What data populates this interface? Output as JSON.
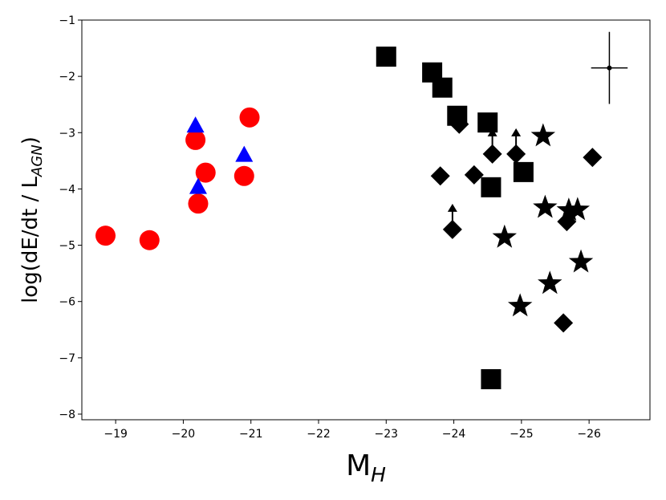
{
  "chart_data": {
    "type": "scatter",
    "title": "",
    "xlabel": {
      "main": "M",
      "sub": "H"
    },
    "ylabel": {
      "main": "log(dE/dt / L",
      "sub": "AGN",
      "tail": ")"
    },
    "xlim": [
      -18.5,
      -26.9
    ],
    "ylim": [
      -8.1,
      -1.0
    ],
    "x_inverted": true,
    "grid": false,
    "legend": "none",
    "xticks": [
      -19,
      -20,
      -21,
      -22,
      -23,
      -24,
      -25,
      -26
    ],
    "xtick_labels": [
      "−19",
      "−20",
      "−21",
      "−22",
      "−23",
      "−24",
      "−25",
      "−26"
    ],
    "yticks": [
      -1,
      -2,
      -3,
      -4,
      -5,
      -6,
      -7,
      -8
    ],
    "ytick_labels": [
      "−1",
      "−2",
      "−3",
      "−4",
      "−5",
      "−6",
      "−7",
      "−8"
    ],
    "series": [
      {
        "marker": "circle",
        "color": "#ff0000",
        "points": [
          [
            -18.85,
            -4.83
          ],
          [
            -19.5,
            -4.91
          ],
          [
            -20.18,
            -3.13
          ],
          [
            -20.22,
            -4.26
          ],
          [
            -20.33,
            -3.71
          ],
          [
            -20.9,
            -3.77
          ],
          [
            -20.98,
            -2.73
          ]
        ]
      },
      {
        "marker": "triangle",
        "color": "#0000ff",
        "points": [
          [
            -20.18,
            -2.87
          ],
          [
            -20.22,
            -3.96
          ],
          [
            -20.9,
            -3.39
          ]
        ]
      },
      {
        "marker": "square",
        "color": "#000000",
        "points": [
          [
            -23.0,
            -1.65
          ],
          [
            -23.68,
            -1.93
          ],
          [
            -23.83,
            -2.2
          ],
          [
            -24.05,
            -2.7
          ],
          [
            -24.5,
            -2.82
          ],
          [
            -24.55,
            -3.97
          ],
          [
            -25.03,
            -3.7
          ],
          [
            -24.55,
            -7.38
          ]
        ]
      },
      {
        "marker": "diamond",
        "color": "#000000",
        "points": [
          [
            -23.8,
            -3.77
          ],
          [
            -23.98,
            -4.72
          ],
          [
            -24.08,
            -2.85
          ],
          [
            -24.3,
            -3.75
          ],
          [
            -24.57,
            -3.38
          ],
          [
            -24.92,
            -3.38
          ],
          [
            -25.62,
            -6.38
          ],
          [
            -25.67,
            -4.58
          ],
          [
            -26.05,
            -3.44
          ]
        ]
      },
      {
        "marker": "star",
        "color": "#000000",
        "points": [
          [
            -24.75,
            -4.86
          ],
          [
            -24.98,
            -6.08
          ],
          [
            -25.32,
            -3.06
          ],
          [
            -25.35,
            -4.33
          ],
          [
            -25.42,
            -5.68
          ],
          [
            -25.7,
            -4.38
          ],
          [
            -25.83,
            -4.37
          ],
          [
            -25.88,
            -5.3
          ]
        ]
      }
    ],
    "upper_limit_arrows": [
      [
        -23.98,
        -4.72
      ],
      [
        -24.57,
        -3.38
      ],
      [
        -24.92,
        -3.38
      ]
    ],
    "error_bar": {
      "x": -26.3,
      "y": -1.85,
      "x_err": 0.27,
      "y_err": 0.64
    }
  }
}
